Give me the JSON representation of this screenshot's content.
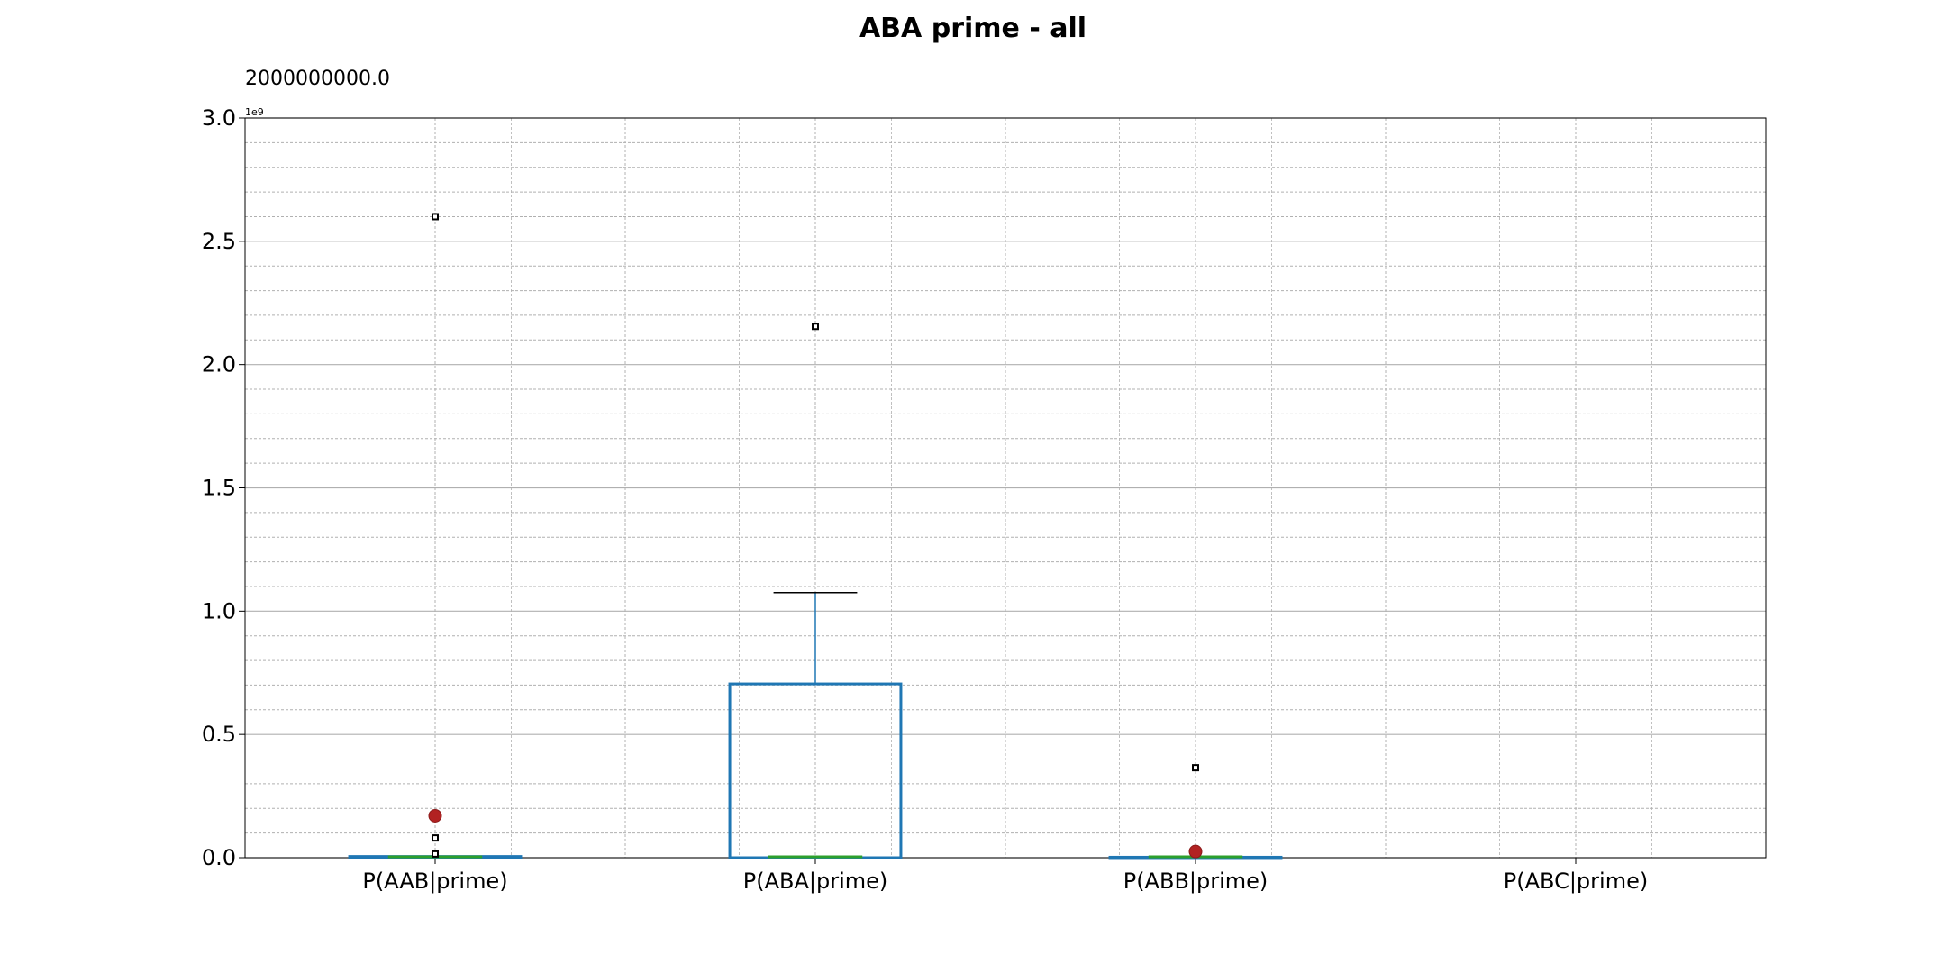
{
  "chart_data": {
    "type": "box",
    "title": "ABA prime - all",
    "annotation": "2000000000.0",
    "y_offset_label": "1e9",
    "ylim": [
      0,
      3.0
    ],
    "y_scale_factor": 1000000000,
    "y_major_ticks": [
      "0.0",
      "0.5",
      "1.0",
      "1.5",
      "2.0",
      "2.5",
      "3.0"
    ],
    "grid": true,
    "categories": [
      "P(AAB|prime)",
      "P(ABA|prime)",
      "P(ABB|prime)",
      "P(ABC|prime)"
    ],
    "boxes": [
      {
        "category": "P(AAB|prime)",
        "q1": 0.0,
        "median": 0.0,
        "q3": 0.005,
        "whisker_low": 0.0,
        "whisker_high": 0.005,
        "mean": 0.17,
        "fliers": [
          2.6,
          0.08,
          0.015
        ]
      },
      {
        "category": "P(ABA|prime)",
        "q1": 0.0,
        "median": 0.0,
        "q3": 0.705,
        "whisker_low": 0.0,
        "whisker_high": 1.075,
        "mean": null,
        "fliers": [
          2.155
        ]
      },
      {
        "category": "P(ABB|prime)",
        "q1": 0.0,
        "median": 0.0,
        "q3": 0.002,
        "whisker_low": 0.0,
        "whisker_high": 0.002,
        "mean": 0.025,
        "fliers": [
          0.365
        ]
      },
      {
        "category": "P(ABC|prime)",
        "q1": null,
        "median": null,
        "q3": null,
        "whisker_low": null,
        "whisker_high": null,
        "mean": null,
        "fliers": []
      }
    ],
    "colors": {
      "box": "#1f77b4",
      "median": "#2ca02c",
      "mean": "#b22222",
      "flier": "#000000",
      "grid": "#b0b0b0"
    }
  }
}
